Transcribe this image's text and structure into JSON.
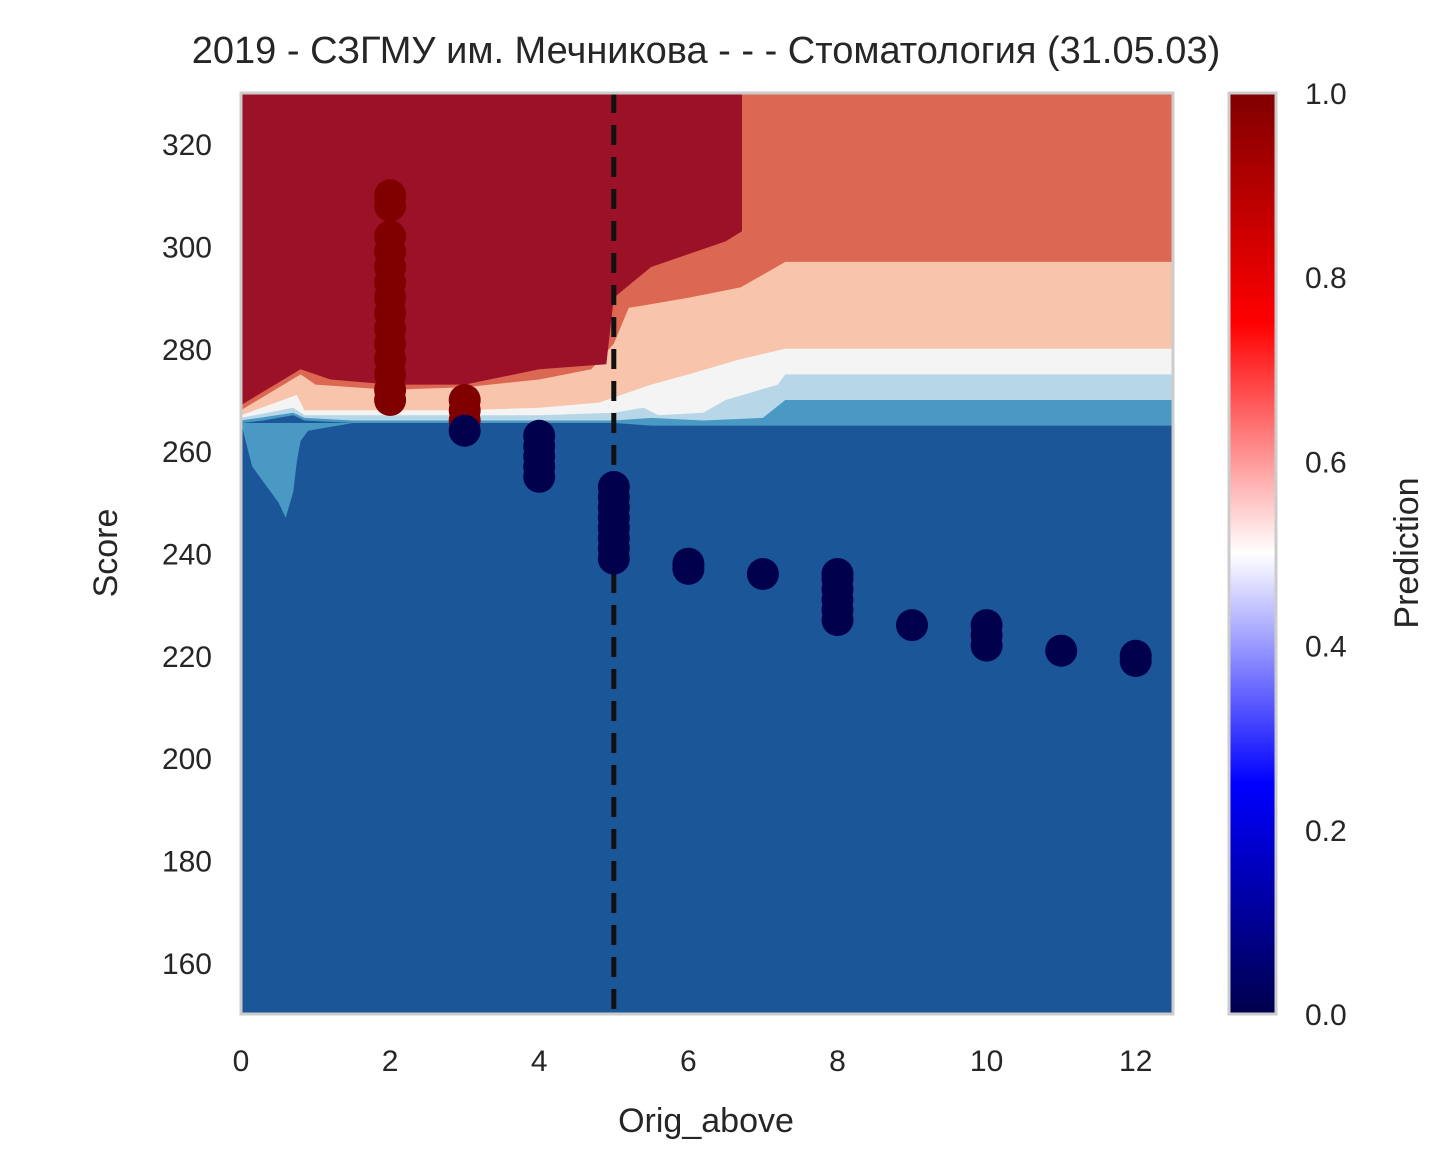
{
  "chart_data": {
    "type": "scatter",
    "title": "2019 - СЗГМУ им. Мечникова - - - Стоматология (31.05.03)",
    "xlabel": "Orig_above",
    "ylabel": "Score",
    "xlim": [
      0,
      12.5
    ],
    "ylim": [
      150,
      330
    ],
    "x_ticks": [
      "0",
      "2",
      "4",
      "6",
      "8",
      "10",
      "12"
    ],
    "y_ticks": [
      "160",
      "180",
      "200",
      "220",
      "240",
      "260",
      "280",
      "300",
      "320"
    ],
    "grid": false,
    "threshold_line": {
      "x": 5,
      "style": "dashed",
      "color": "#111111"
    },
    "background": {
      "kind": "filled-contour",
      "levels": [
        {
          "value_range": [
            0.0,
            0.1
          ],
          "color": "#1b5698"
        },
        {
          "value_range": [
            0.1,
            0.2
          ],
          "color": "#4a99c5"
        },
        {
          "value_range": [
            0.2,
            0.4
          ],
          "color": "#b7d6e8"
        },
        {
          "value_range": [
            0.4,
            0.6
          ],
          "color": "#f4f4f4"
        },
        {
          "value_range": [
            0.6,
            0.8
          ],
          "color": "#f8c4ab"
        },
        {
          "value_range": [
            0.8,
            0.9
          ],
          "color": "#dc6853"
        },
        {
          "value_range": [
            0.9,
            1.0
          ],
          "color": "#9b1127"
        }
      ]
    },
    "colorbar": {
      "label": "Prediction",
      "range": [
        0,
        1
      ],
      "ticks": [
        "0.0",
        "0.2",
        "0.4",
        "0.6",
        "0.8",
        "1.0"
      ],
      "colors": [
        "#00004c",
        "#0000ff",
        "#ffffff",
        "#ff0000",
        "#800000"
      ]
    },
    "series": [
      {
        "prediction": 1.0,
        "color": "#800000",
        "points": [
          [
            2,
            270
          ],
          [
            2,
            272
          ],
          [
            2,
            275
          ],
          [
            2,
            278
          ],
          [
            2,
            281
          ],
          [
            2,
            284
          ],
          [
            2,
            287
          ],
          [
            2,
            290
          ],
          [
            2,
            293
          ],
          [
            2,
            296
          ],
          [
            2,
            299
          ],
          [
            2,
            302
          ],
          [
            2,
            308
          ],
          [
            2,
            310
          ],
          [
            3,
            266
          ],
          [
            3,
            268
          ],
          [
            3,
            270
          ]
        ]
      },
      {
        "prediction": 0.0,
        "color": "#00004c",
        "points": [
          [
            3,
            264
          ],
          [
            4,
            255
          ],
          [
            4,
            257
          ],
          [
            4,
            259
          ],
          [
            4,
            261
          ],
          [
            4,
            263
          ],
          [
            5,
            239
          ],
          [
            5,
            241
          ],
          [
            5,
            243
          ],
          [
            5,
            245
          ],
          [
            5,
            247
          ],
          [
            5,
            249
          ],
          [
            5,
            251
          ],
          [
            5,
            253
          ],
          [
            6,
            237
          ],
          [
            6,
            238
          ],
          [
            7,
            236
          ],
          [
            8,
            227
          ],
          [
            8,
            229
          ],
          [
            8,
            231
          ],
          [
            8,
            233
          ],
          [
            8,
            235
          ],
          [
            8,
            236
          ],
          [
            9,
            226
          ],
          [
            10,
            222
          ],
          [
            10,
            224
          ],
          [
            10,
            226
          ],
          [
            11,
            221
          ],
          [
            12,
            219
          ],
          [
            12,
            220
          ]
        ]
      }
    ]
  }
}
